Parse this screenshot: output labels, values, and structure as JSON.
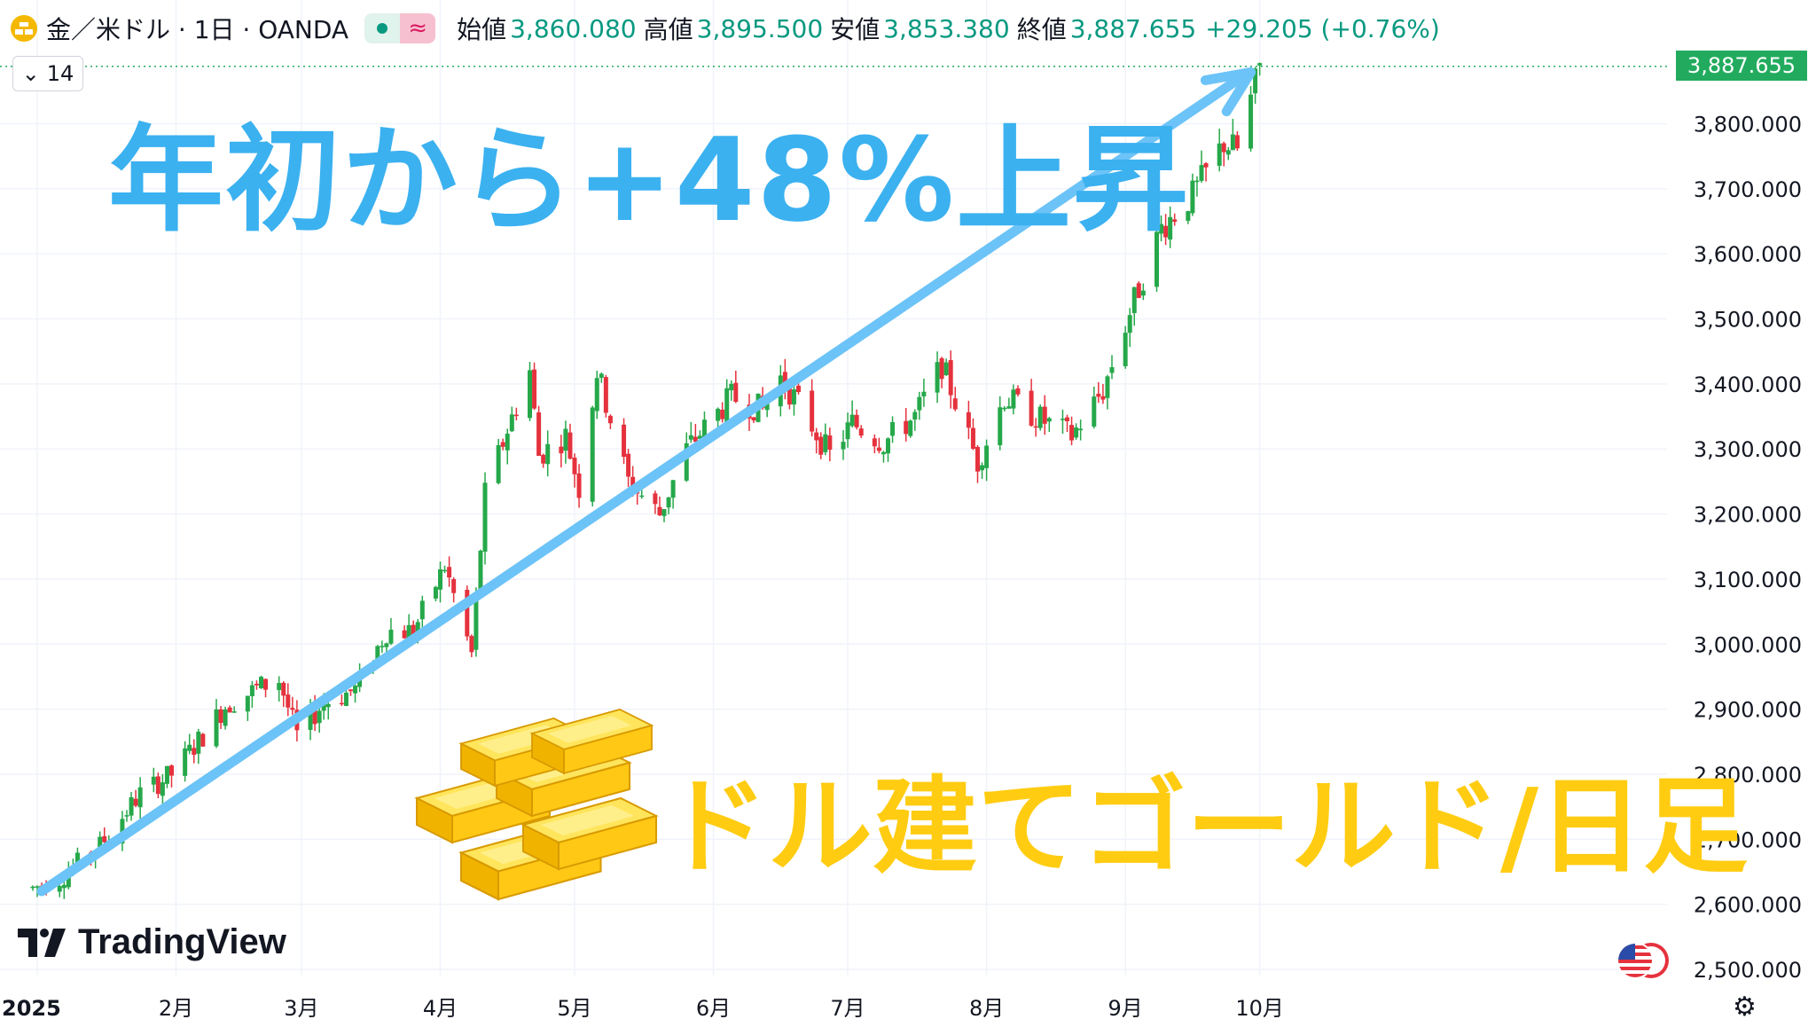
{
  "header": {
    "symbol": "金／米ドル · 1日 · OANDA",
    "open_label": "始値",
    "open": "3,860.080",
    "high_label": "高値",
    "high": "3,895.500",
    "low_label": "安値",
    "low": "3,853.380",
    "close_label": "終値",
    "close": "3,887.655",
    "change": "+29.205 (+0.76%)"
  },
  "indicator_toggle": "14",
  "last_price_badge": "3,887.655",
  "headline": "年初から+48%上昇",
  "subtitle": "ドル建てゴールド/日足",
  "logo_text": "TradingView",
  "colors": {
    "up": "#26a84a",
    "down": "#e5323d",
    "arrow": "#6cc3f7",
    "headline": "#3bb1f0",
    "subtitle": "#ffcc12"
  },
  "chart_data": {
    "type": "candlestick",
    "y_ticks": [
      "2,500.000",
      "2,600.000",
      "2,700.000",
      "2,800.000",
      "2,900.000",
      "3,000.000",
      "3,100.000",
      "3,200.000",
      "3,300.000",
      "3,400.000",
      "3,500.000",
      "3,600.000",
      "3,700.000",
      "3,800.000"
    ],
    "ylim": [
      2480,
      3920
    ],
    "x_ticks": [
      "2025",
      "2月",
      "3月",
      "4月",
      "5月",
      "6月",
      "7月",
      "8月",
      "9月",
      "10月"
    ],
    "trend_arrow": {
      "from": [
        "2025-01-02",
        2620
      ],
      "to": [
        "2025-10-01",
        3890
      ]
    },
    "keypoints": [
      [
        "2024-12-31",
        2625
      ],
      [
        "2025-01-06",
        2640
      ],
      [
        "2025-01-15",
        2690
      ],
      [
        "2025-01-24",
        2770
      ],
      [
        "2025-01-31",
        2800
      ],
      [
        "2025-02-07",
        2860
      ],
      [
        "2025-02-12",
        2905
      ],
      [
        "2025-02-20",
        2935
      ],
      [
        "2025-02-24",
        2945
      ],
      [
        "2025-02-28",
        2860
      ],
      [
        "2025-03-06",
        2910
      ],
      [
        "2025-03-13",
        2930
      ],
      [
        "2025-03-20",
        3020
      ],
      [
        "2025-03-26",
        3020
      ],
      [
        "2025-04-02",
        3120
      ],
      [
        "2025-04-08",
        2985
      ],
      [
        "2025-04-11",
        3230
      ],
      [
        "2025-04-16",
        3330
      ],
      [
        "2025-04-21",
        3420
      ],
      [
        "2025-04-23",
        3290
      ],
      [
        "2025-04-29",
        3320
      ],
      [
        "2025-05-02",
        3240
      ],
      [
        "2025-05-06",
        3420
      ],
      [
        "2025-05-13",
        3250
      ],
      [
        "2025-05-20",
        3200
      ],
      [
        "2025-05-26",
        3300
      ],
      [
        "2025-06-05",
        3380
      ],
      [
        "2025-06-12",
        3360
      ],
      [
        "2025-06-16",
        3410
      ],
      [
        "2025-06-20",
        3370
      ],
      [
        "2025-06-27",
        3290
      ],
      [
        "2025-07-02",
        3340
      ],
      [
        "2025-07-09",
        3310
      ],
      [
        "2025-07-16",
        3350
      ],
      [
        "2025-07-22",
        3430
      ],
      [
        "2025-07-30",
        3280
      ],
      [
        "2025-08-05",
        3380
      ],
      [
        "2025-08-12",
        3350
      ],
      [
        "2025-08-20",
        3320
      ],
      [
        "2025-08-27",
        3390
      ],
      [
        "2025-09-02",
        3510
      ],
      [
        "2025-09-09",
        3640
      ],
      [
        "2025-09-16",
        3690
      ],
      [
        "2025-09-23",
        3770
      ],
      [
        "2025-09-26",
        3760
      ],
      [
        "2025-10-01",
        3888
      ]
    ]
  }
}
